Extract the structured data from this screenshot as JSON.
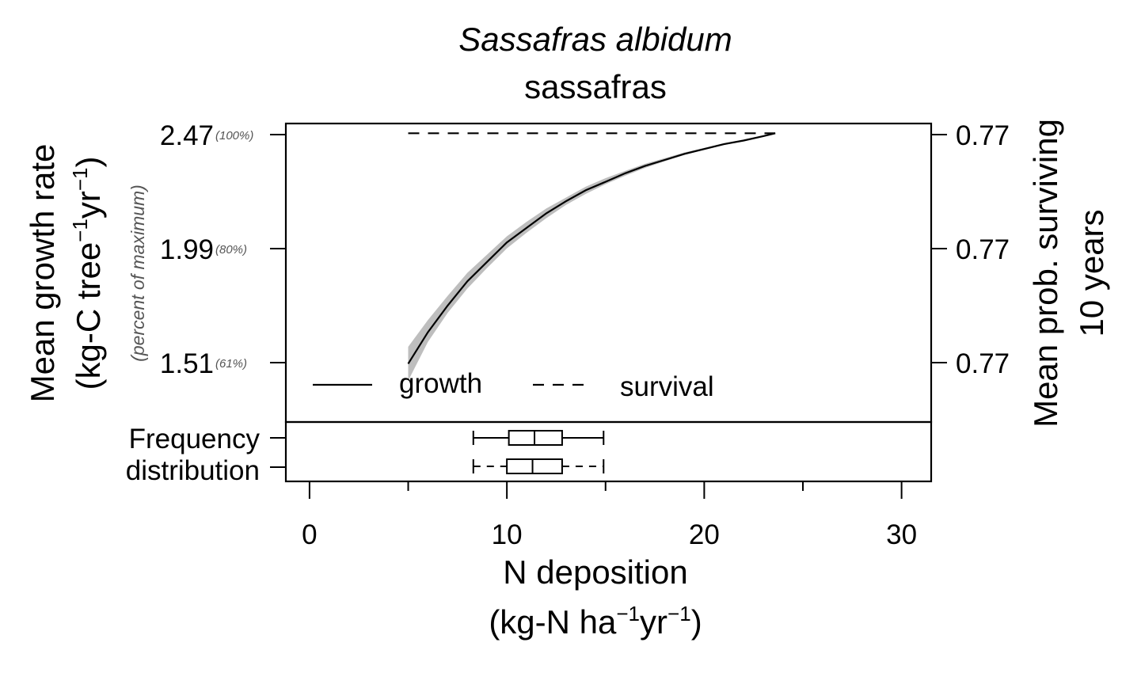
{
  "title": {
    "species": "Sassafras albidum",
    "common": "sassafras"
  },
  "y_left": {
    "label_line1": "Mean growth rate",
    "label_line2_prefix": "(kg-C tree",
    "label_line2_unit": "yr",
    "label_exp": "−1",
    "label_close": ")",
    "percent_label": "(percent of maximum)",
    "ticks": [
      {
        "value": "2.47",
        "pct": "(100%)"
      },
      {
        "value": "1.99",
        "pct": "(80%)"
      },
      {
        "value": "1.51",
        "pct": "(61%)"
      }
    ]
  },
  "y_right": {
    "label_line1": "Mean prob. surviving",
    "label_line2": "10 years",
    "ticks": [
      "0.77",
      "0.77",
      "0.77"
    ]
  },
  "x_axis": {
    "label_line1": "N deposition",
    "label_line2_prefix": "(kg-N ha",
    "label_line2_unit": "yr",
    "label_exp": "−1",
    "label_close": ")",
    "ticks": [
      "0",
      "10",
      "20",
      "30"
    ]
  },
  "legend": {
    "growth": "growth",
    "survival": "survival"
  },
  "freq": {
    "line1": "Frequency",
    "line2": "distribution"
  },
  "colors": {
    "band": "#bebebe",
    "line": "#000000"
  },
  "chart_data": {
    "type": "line",
    "xlim": [
      -1.2,
      31.5
    ],
    "ylim": [
      1.28,
      2.51
    ],
    "series": [
      {
        "name": "growth",
        "x": [
          5.0,
          6.0,
          7.0,
          8.0,
          9.0,
          10.0,
          11.0,
          12.0,
          13.0,
          14.0,
          15.0,
          16.0,
          17.0,
          18.0,
          19.0,
          20.0,
          21.0,
          22.0,
          23.0,
          23.6
        ],
        "y": [
          1.52,
          1.65,
          1.76,
          1.86,
          1.94,
          2.02,
          2.08,
          2.14,
          2.19,
          2.235,
          2.27,
          2.305,
          2.335,
          2.36,
          2.385,
          2.405,
          2.425,
          2.44,
          2.458,
          2.47
        ],
        "lower": [
          1.45,
          1.61,
          1.73,
          1.83,
          1.915,
          1.995,
          2.06,
          2.12,
          2.175,
          2.22,
          2.26,
          2.295,
          2.327,
          2.354,
          2.38,
          2.401,
          2.422,
          2.438,
          2.456,
          2.468
        ],
        "upper": [
          1.59,
          1.7,
          1.8,
          1.895,
          1.97,
          2.045,
          2.105,
          2.16,
          2.205,
          2.25,
          2.285,
          2.315,
          2.344,
          2.367,
          2.391,
          2.41,
          2.429,
          2.444,
          2.461,
          2.472
        ]
      },
      {
        "name": "survival",
        "x": [
          5.0,
          23.6
        ],
        "y": [
          2.47,
          2.47
        ]
      }
    ],
    "boxplots": [
      {
        "name": "growth",
        "min": 8.3,
        "q1": 10.1,
        "median": 11.4,
        "q3": 12.8,
        "max": 14.9
      },
      {
        "name": "survival",
        "min": 8.3,
        "q1": 10.0,
        "median": 11.3,
        "q3": 12.8,
        "max": 14.9
      }
    ]
  }
}
